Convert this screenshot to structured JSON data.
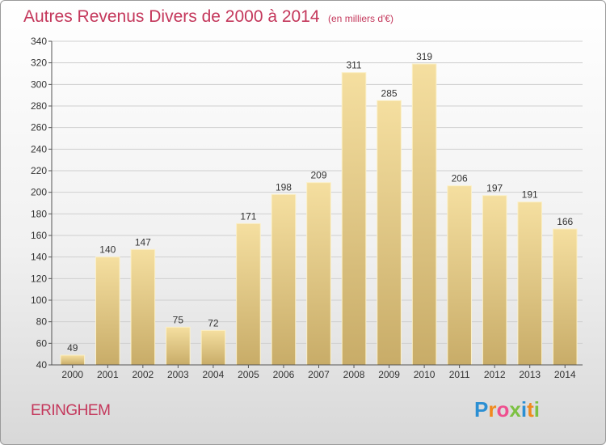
{
  "chart_data": {
    "type": "bar",
    "title": "Autres Revenus Divers de 2000 à 2014",
    "unit": "(en milliers d'€)",
    "categories": [
      "2000",
      "2001",
      "2002",
      "2003",
      "2004",
      "2005",
      "2006",
      "2007",
      "2008",
      "2009",
      "2010",
      "2011",
      "2012",
      "2013",
      "2014"
    ],
    "values": [
      49,
      140,
      147,
      75,
      72,
      171,
      198,
      209,
      311,
      285,
      319,
      206,
      197,
      191,
      166
    ],
    "ylim": [
      40,
      340
    ],
    "yticks": [
      40,
      60,
      80,
      100,
      120,
      140,
      160,
      180,
      200,
      220,
      240,
      260,
      280,
      300,
      320,
      340
    ],
    "grid": true,
    "bar_color_top": "#f5dfa0",
    "bar_color_bottom": "#c8ac68"
  },
  "footer": {
    "commune": "ERINGHEM",
    "logo_letters": [
      {
        "ch": "P",
        "color": "#2b8fd3"
      },
      {
        "ch": "r",
        "color": "#f08a1d"
      },
      {
        "ch": "o",
        "color": "#ef4f8f"
      },
      {
        "ch": "x",
        "color": "#7cc142"
      },
      {
        "ch": "i",
        "color": "#2b8fd3"
      },
      {
        "ch": "t",
        "color": "#f08a1d"
      },
      {
        "ch": "i",
        "color": "#7cc142"
      }
    ]
  }
}
